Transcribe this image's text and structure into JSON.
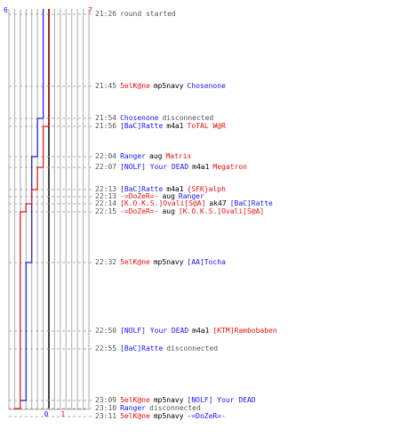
{
  "colors": {
    "blue": "#1515ff",
    "red": "#e8120e",
    "time": "#555555",
    "grid": "#aaaaaa",
    "center": "#444444",
    "dash": "#aaaaaa",
    "background": "#ffffff"
  },
  "chart_data": {
    "type": "line",
    "title": "",
    "xlabel": "",
    "ylabel": "",
    "team_scores": {
      "blue": {
        "start": 6,
        "end": 0
      },
      "red": {
        "start": 7,
        "end": 1
      }
    },
    "score_labels_top": [
      "6",
      "7"
    ],
    "score_labels_bottom": [
      "0",
      "1"
    ],
    "series": [
      {
        "name": "",
        "color": "blue",
        "points": [
          [
            0,
            6
          ],
          [
            2,
            5
          ],
          [
            4,
            4
          ],
          [
            10,
            3
          ],
          [
            13,
            2
          ],
          [
            17,
            1
          ],
          [
            19,
            0
          ]
        ]
      },
      {
        "name": "",
        "color": "red",
        "points": [
          [
            0,
            7
          ],
          [
            3,
            6
          ],
          [
            5,
            5
          ],
          [
            6,
            4
          ],
          [
            8,
            3
          ],
          [
            9,
            2
          ],
          [
            14,
            1
          ]
        ]
      }
    ]
  },
  "events": [
    {
      "time": "21:26",
      "parts": [
        {
          "t": "round started",
          "c": "gray"
        }
      ]
    },
    {
      "time": "21:45",
      "parts": [
        {
          "t": "5elK@ne",
          "c": "red"
        },
        {
          "t": "mp5navy",
          "c": "black"
        },
        {
          "t": "Chosenone",
          "c": "blue"
        }
      ]
    },
    {
      "time": "21:54",
      "parts": [
        {
          "t": "Chosenone",
          "c": "blue"
        },
        {
          "t": "disconnected",
          "c": "gray"
        }
      ]
    },
    {
      "time": "21:56",
      "parts": [
        {
          "t": "[BaC]Ratte",
          "c": "blue"
        },
        {
          "t": "m4a1",
          "c": "black"
        },
        {
          "t": "ToTAL W@R",
          "c": "red"
        }
      ]
    },
    {
      "time": "22:04",
      "parts": [
        {
          "t": "Ranger",
          "c": "blue"
        },
        {
          "t": "aug",
          "c": "black"
        },
        {
          "t": "Matrix",
          "c": "red"
        }
      ]
    },
    {
      "time": "22:07",
      "parts": [
        {
          "t": "[NOLF] Your DEAD",
          "c": "blue"
        },
        {
          "t": "m4a1",
          "c": "black"
        },
        {
          "t": "Megatron",
          "c": "red"
        }
      ]
    },
    {
      "time": "22:13",
      "parts": [
        {
          "t": "[BaC]Ratte",
          "c": "blue"
        },
        {
          "t": "m4a1",
          "c": "black"
        },
        {
          "t": "{SFK}alph",
          "c": "red"
        }
      ]
    },
    {
      "time": "22:13",
      "parts": [
        {
          "t": "-=DoZeR=-",
          "c": "red"
        },
        {
          "t": "aug",
          "c": "black"
        },
        {
          "t": "Ranger",
          "c": "blue"
        }
      ]
    },
    {
      "time": "22:14",
      "parts": [
        {
          "t": "[K.O.K.S.]Ovali[S@A]",
          "c": "red"
        },
        {
          "t": "ak47",
          "c": "black"
        },
        {
          "t": "[BaC]Ratte",
          "c": "blue"
        }
      ]
    },
    {
      "time": "22:15",
      "parts": [
        {
          "t": "-=DoZeR=-",
          "c": "red"
        },
        {
          "t": "aug",
          "c": "black"
        },
        {
          "t": "[K.O.K.S.]Ovali[S@A]",
          "c": "red"
        }
      ]
    },
    {
      "time": "22:32",
      "parts": [
        {
          "t": "5elK@ne",
          "c": "red"
        },
        {
          "t": "mp5navy",
          "c": "black"
        },
        {
          "t": "[AA]Tocha",
          "c": "blue"
        }
      ]
    },
    {
      "time": "22:50",
      "parts": [
        {
          "t": "[NOLF] Your DEAD",
          "c": "blue"
        },
        {
          "t": "m4a1",
          "c": "black"
        },
        {
          "t": "[KTM]Rambobaben",
          "c": "red"
        }
      ]
    },
    {
      "time": "22:55",
      "parts": [
        {
          "t": "[BaC]Ratte",
          "c": "blue"
        },
        {
          "t": "disconnected",
          "c": "gray"
        }
      ]
    },
    {
      "time": "23:09",
      "parts": [
        {
          "t": "5elK@ne",
          "c": "red"
        },
        {
          "t": "mp5navy",
          "c": "black"
        },
        {
          "t": "[NOLF] Your DEAD",
          "c": "blue"
        }
      ]
    },
    {
      "time": "23:10",
      "parts": [
        {
          "t": "Ranger",
          "c": "blue"
        },
        {
          "t": "disconnected",
          "c": "gray"
        }
      ]
    },
    {
      "time": "23:11",
      "parts": [
        {
          "t": "5elK@ne",
          "c": "red"
        },
        {
          "t": "mp5navy",
          "c": "black"
        },
        {
          "t": "-=DoZeR=-",
          "c": "blue"
        }
      ]
    }
  ]
}
